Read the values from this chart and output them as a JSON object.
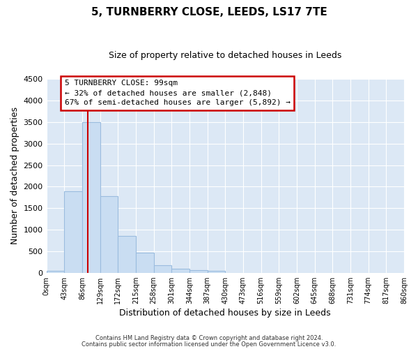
{
  "title": "5, TURNBERRY CLOSE, LEEDS, LS17 7TE",
  "subtitle": "Size of property relative to detached houses in Leeds",
  "xlabel": "Distribution of detached houses by size in Leeds",
  "ylabel": "Number of detached properties",
  "bar_color": "#c9ddf2",
  "bar_edge_color": "#9bbcdf",
  "bg_color": "#dce8f5",
  "grid_color": "#ffffff",
  "fig_bg_color": "#ffffff",
  "vline_x": 99,
  "vline_color": "#cc0000",
  "annotation_title": "5 TURNBERRY CLOSE: 99sqm",
  "annotation_line1": "← 32% of detached houses are smaller (2,848)",
  "annotation_line2": "67% of semi-detached houses are larger (5,892) →",
  "annotation_box_edgecolor": "#cc0000",
  "bins": [
    0,
    43,
    86,
    129,
    172,
    215,
    258,
    301,
    344,
    387,
    430,
    473,
    516,
    559,
    602,
    645,
    688,
    731,
    774,
    817,
    860
  ],
  "bin_labels": [
    "0sqm",
    "43sqm",
    "86sqm",
    "129sqm",
    "172sqm",
    "215sqm",
    "258sqm",
    "301sqm",
    "344sqm",
    "387sqm",
    "430sqm",
    "473sqm",
    "516sqm",
    "559sqm",
    "602sqm",
    "645sqm",
    "688sqm",
    "731sqm",
    "774sqm",
    "817sqm",
    "860sqm"
  ],
  "bar_heights": [
    50,
    1900,
    3500,
    1780,
    850,
    460,
    180,
    100,
    55,
    40,
    0,
    0,
    0,
    0,
    0,
    0,
    0,
    0,
    0,
    0
  ],
  "ylim": [
    0,
    4500
  ],
  "yticks": [
    0,
    500,
    1000,
    1500,
    2000,
    2500,
    3000,
    3500,
    4000,
    4500
  ],
  "footer1": "Contains HM Land Registry data © Crown copyright and database right 2024.",
  "footer2": "Contains public sector information licensed under the Open Government Licence v3.0."
}
